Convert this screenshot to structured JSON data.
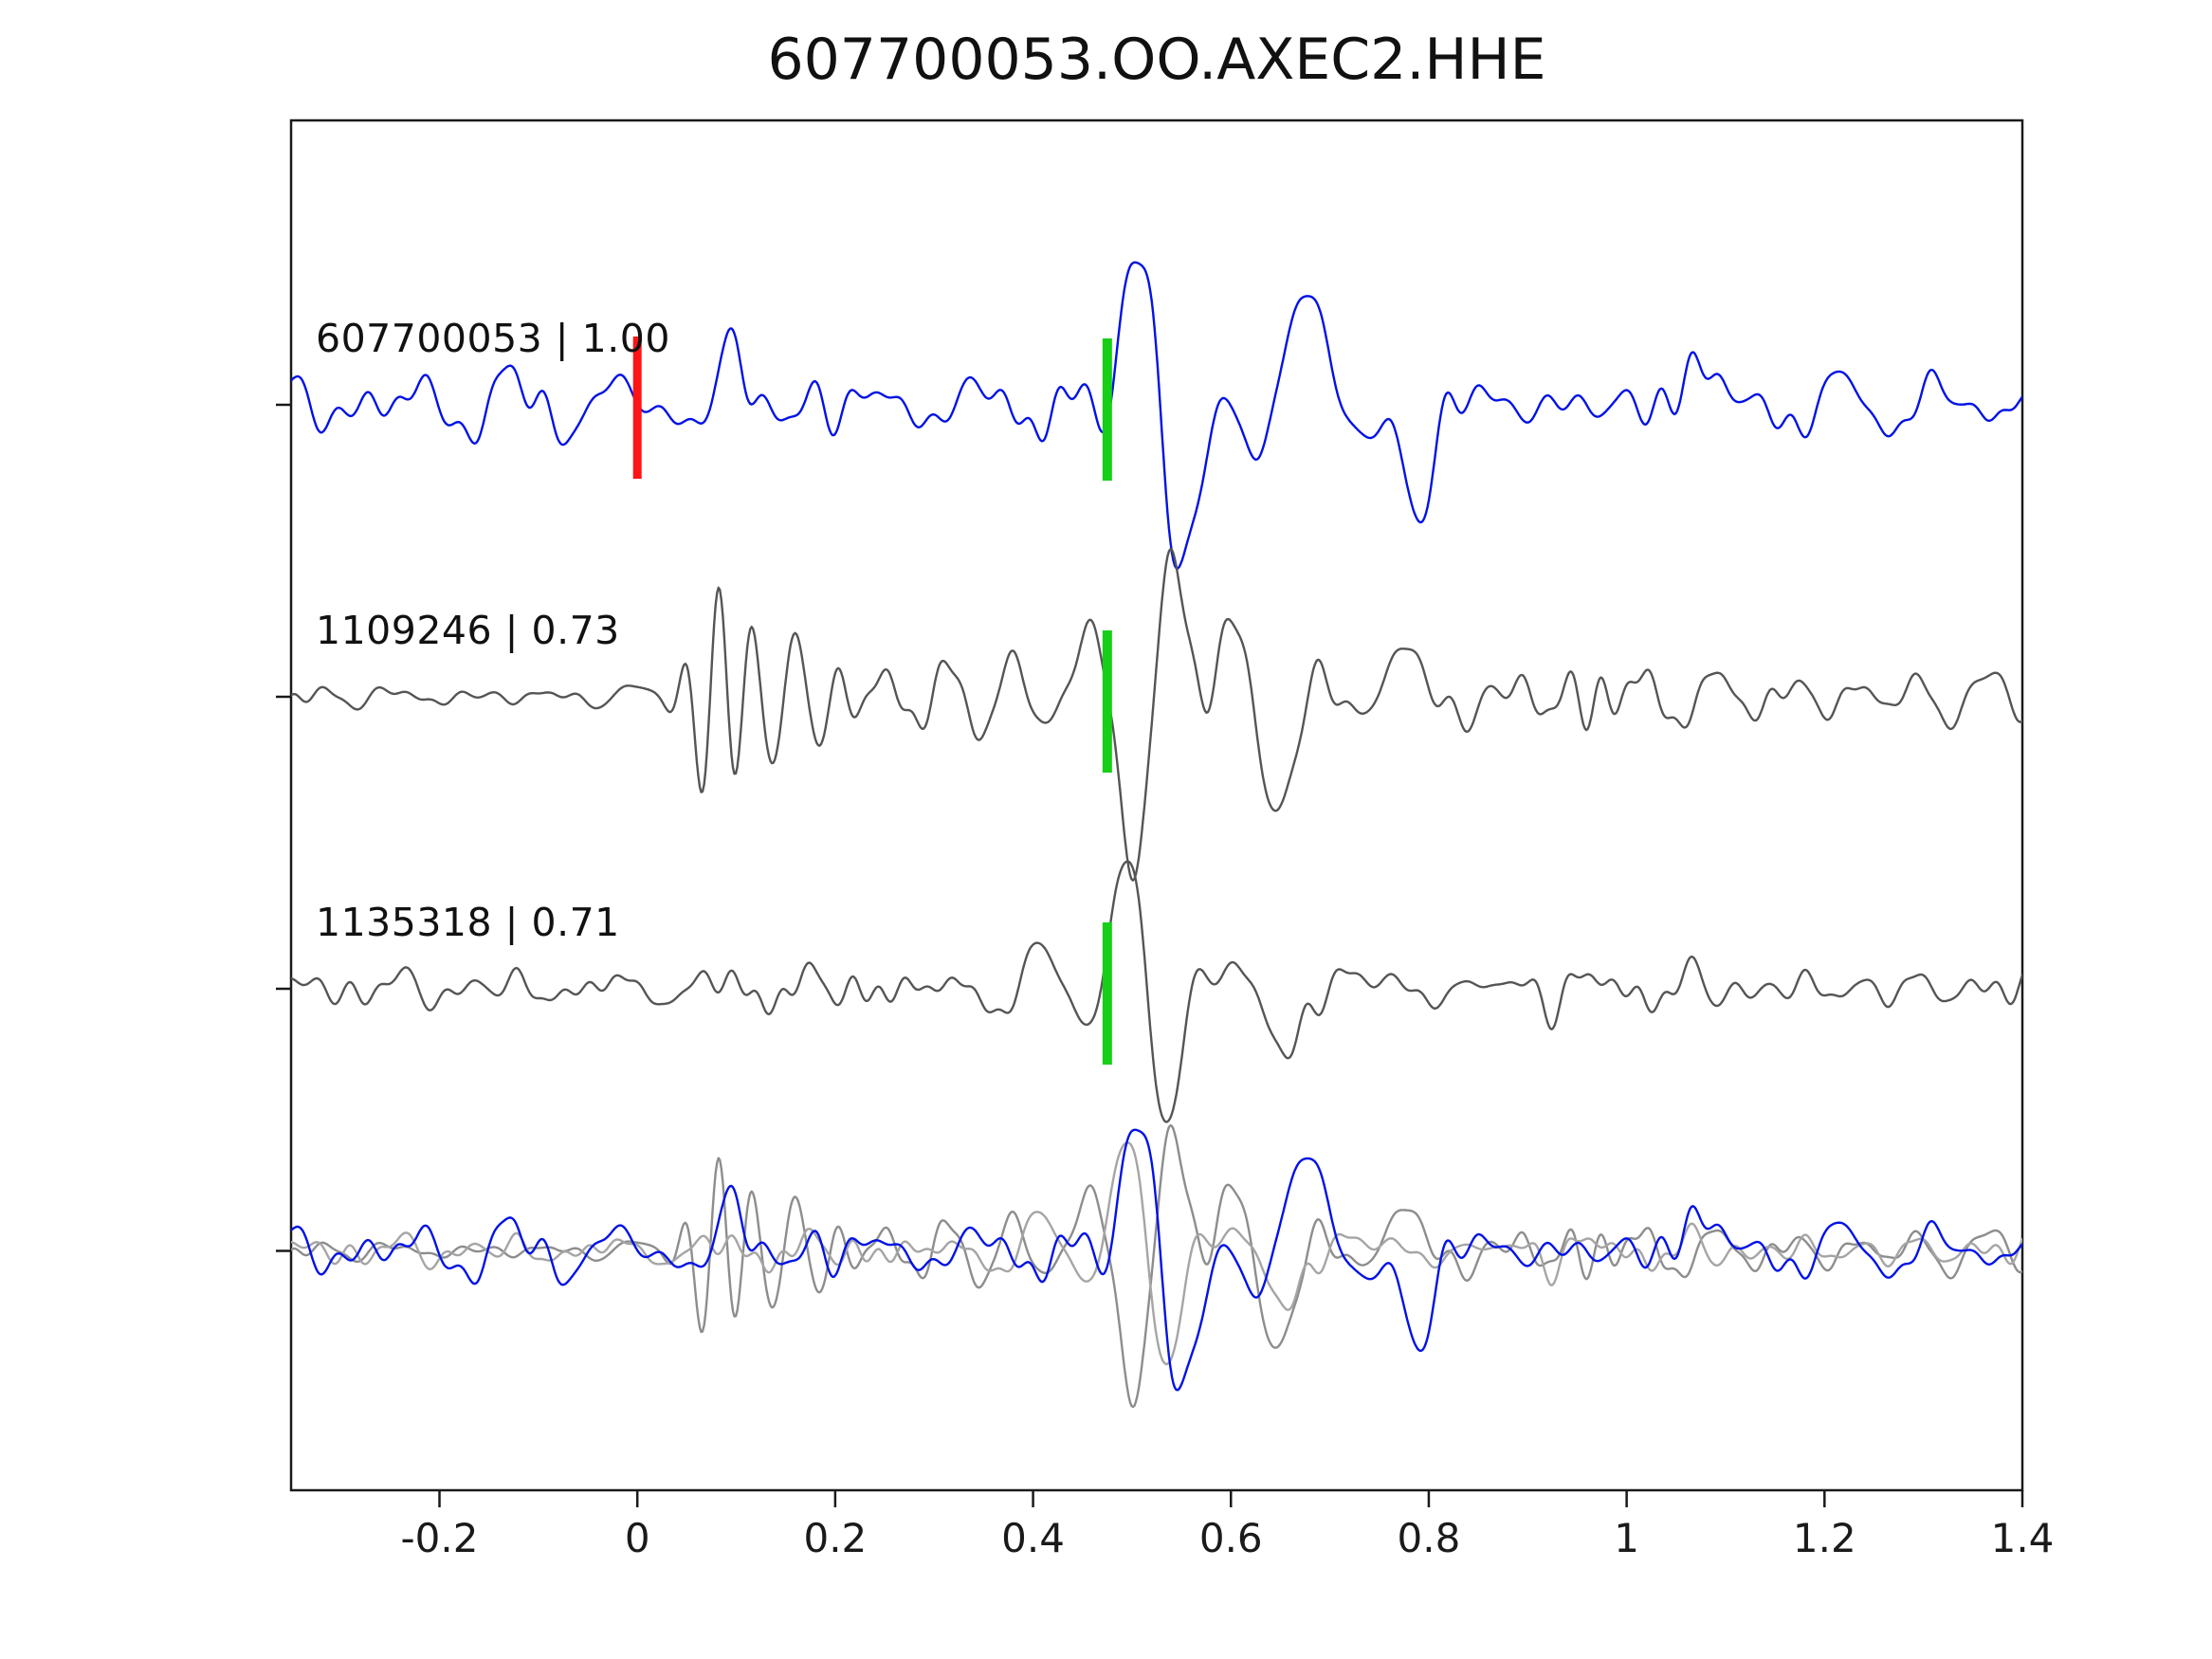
{
  "title": "607700053.OO.AXEC2.HHE",
  "chart_data": {
    "type": "line",
    "title": "607700053.OO.AXEC2.HHE",
    "xlabel": "",
    "ylabel": "",
    "x_range": [
      -0.35,
      1.4
    ],
    "x_ticks": [
      -0.2,
      0,
      0.2,
      0.4,
      0.6,
      0.8,
      1,
      1.2,
      1.4
    ],
    "x_tick_labels": [
      "-0.2",
      "0",
      "0.2",
      "0.4",
      "0.6",
      "0.8",
      "1",
      "1.2",
      "1.4"
    ],
    "grid": false,
    "legend": "none",
    "colors": {
      "reference": "#0012e6",
      "match": "#555555",
      "pick_marker": "#16cf16",
      "origin_marker": "#ff1414",
      "axis": "#1a1a1a",
      "overlay_gray_1": "#8d8d8d",
      "overlay_gray_2": "#a5a5a5"
    },
    "traces": [
      {
        "id": "607700053",
        "correlation": "1.00",
        "label": "607700053 | 1.00",
        "color_key": "reference",
        "baseline_frac": 0.244,
        "noise_rms": 16,
        "noise_seed": 9001,
        "noise_env": {
          "t0": -9,
          "before": 1,
          "after": 1
        },
        "wavelets": [
          {
            "t": 0.53,
            "amp": 230,
            "sigma": 0.05,
            "freq": 9,
            "phase": 1.7
          },
          {
            "t": 0.68,
            "amp": 115,
            "sigma": 0.07,
            "freq": 7,
            "phase": 0.0
          },
          {
            "t": 0.79,
            "amp": 105,
            "sigma": 0.03,
            "freq": 8,
            "phase": 3.14
          },
          {
            "t": 0.1,
            "amp": 60,
            "sigma": 0.015,
            "freq": 12,
            "phase": 0.0
          },
          {
            "t": 1.07,
            "amp": 55,
            "sigma": 0.04,
            "freq": 8,
            "phase": 0.0
          }
        ],
        "pick_t": 0.475,
        "origin_t": 0.0
      },
      {
        "id": "1109246",
        "correlation": "0.73",
        "label": "1109246 | 0.73",
        "color_key": "match",
        "baseline_frac": 0.42,
        "noise_rms": 14,
        "noise_env": {
          "t0": 0.0,
          "before": 0.45,
          "after": 1
        },
        "noise_seed": 20207,
        "wavelets": [
          {
            "t": 0.085,
            "amp": 110,
            "sigma": 0.05,
            "freq": 28,
            "phase": 0.5
          },
          {
            "t": 0.17,
            "amp": 60,
            "sigma": 0.04,
            "freq": 22,
            "phase": 1.2
          },
          {
            "t": 0.32,
            "amp": 45,
            "sigma": 0.1,
            "freq": 15,
            "phase": 0.8
          },
          {
            "t": 0.5,
            "amp": 190,
            "sigma": 0.045,
            "freq": 11,
            "phase": 3.1
          },
          {
            "t": 0.545,
            "amp": 90,
            "sigma": 0.03,
            "freq": 10,
            "phase": 0.0
          },
          {
            "t": 0.64,
            "amp": 110,
            "sigma": 0.055,
            "freq": 8,
            "phase": 2.5
          },
          {
            "t": 0.78,
            "amp": 55,
            "sigma": 0.05,
            "freq": 9,
            "phase": 0.0
          }
        ],
        "pick_t": 0.475,
        "origin_t": null
      },
      {
        "id": "1135318",
        "correlation": "0.71",
        "label": "1135318 | 0.71",
        "color_key": "match",
        "baseline_frac": 0.596,
        "noise_rms": 10,
        "noise_env": {
          "t0": -9,
          "before": 1,
          "after": 1
        },
        "noise_seed": 30311,
        "wavelets": [
          {
            "t": 0.41,
            "amp": 40,
            "sigma": 0.05,
            "freq": 10,
            "phase": 0.0
          },
          {
            "t": 0.515,
            "amp": 180,
            "sigma": 0.045,
            "freq": 10,
            "phase": 1.57
          },
          {
            "t": 0.655,
            "amp": 80,
            "sigma": 0.05,
            "freq": 8,
            "phase": 3.1
          }
        ],
        "pick_t": 0.475,
        "origin_t": null
      }
    ],
    "overlay": {
      "baseline_frac": 0.754,
      "scale": 0.85,
      "members": [
        {
          "trace": 1,
          "color_key": "overlay_gray_1"
        },
        {
          "trace": 2,
          "color_key": "overlay_gray_2"
        },
        {
          "trace": 0,
          "color_key": "reference"
        }
      ]
    }
  }
}
